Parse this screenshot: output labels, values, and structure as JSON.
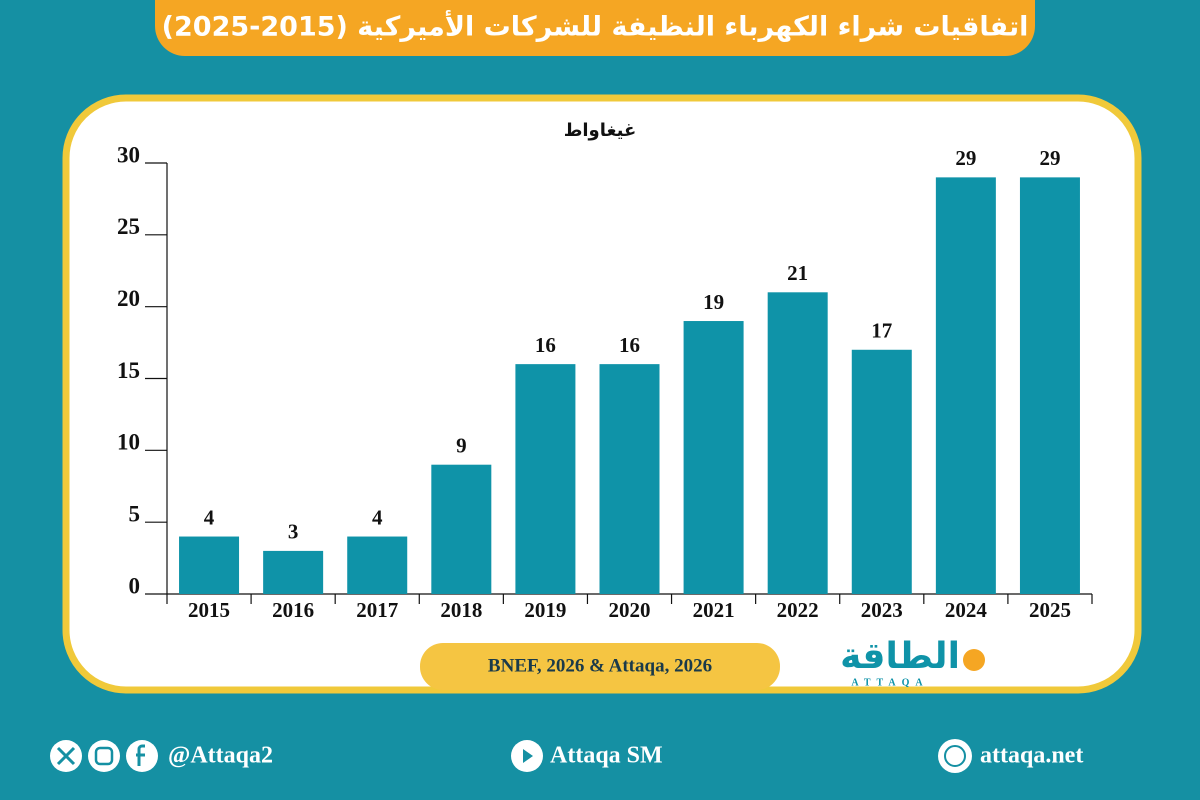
{
  "chart_data": {
    "type": "bar",
    "title": "اتفاقيات شراء الكهرباء النظيفة للشركات الأميركية (2015-2025)",
    "y_label": "غيغاواط",
    "categories": [
      "2015",
      "2016",
      "2017",
      "2018",
      "2019",
      "2020",
      "2021",
      "2022",
      "2023",
      "2024",
      "2025"
    ],
    "values": [
      4,
      3,
      4,
      9,
      16,
      16,
      19,
      21,
      17,
      29,
      29
    ],
    "color": "#0f93a8",
    "ylim": [
      0,
      30
    ],
    "yticks": [
      0,
      5,
      10,
      15,
      20,
      25,
      30
    ],
    "source": "BNEF, 2026 & Attaqa, 2026"
  },
  "logo": {
    "text": "الطاقة",
    "subtitle": "ATTAQA"
  },
  "footer": {
    "social": "@Attaqa2",
    "youtube": "Attaqa SM",
    "website": "attaqa.net"
  }
}
